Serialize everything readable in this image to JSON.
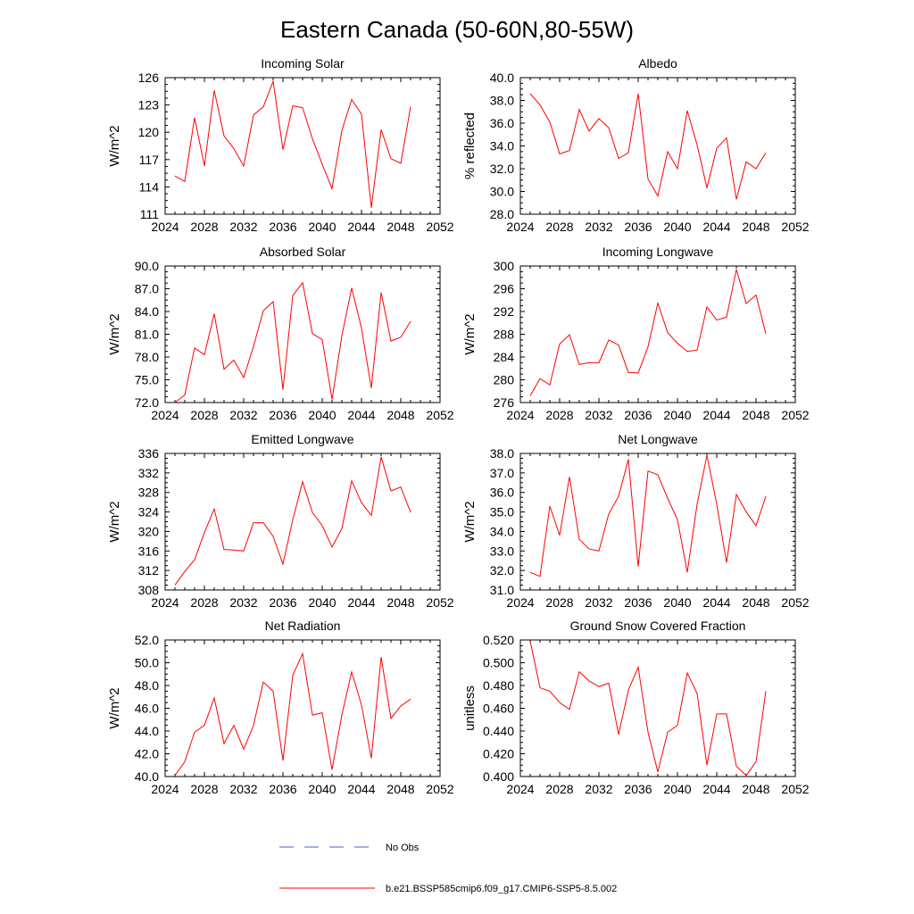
{
  "figure_title": "Eastern Canada (50-60N,80-55W)",
  "legend": {
    "obs_label": "No Obs",
    "obs_color": "#4a5fc9",
    "model_label": "b.e21.BSSP585cmip6.f09_g17.CMIP6-SSP5-8.5.002",
    "model_color": "#ff0000"
  },
  "chart_data": [
    {
      "type": "line",
      "title": "Incoming Solar",
      "ylabel": "W/m^2",
      "xlim": [
        2024,
        2052
      ],
      "x_ticks": [
        "2024",
        "2028",
        "2032",
        "2036",
        "2040",
        "2044",
        "2048",
        "2052"
      ],
      "ylim": [
        111,
        126
      ],
      "y_ticks": [
        "111",
        "114",
        "117",
        "120",
        "123",
        "126"
      ],
      "x": [
        2025,
        2026,
        2027,
        2028,
        2029,
        2030,
        2031,
        2032,
        2033,
        2034,
        2035,
        2036,
        2037,
        2038,
        2039,
        2040,
        2041,
        2042,
        2043,
        2044,
        2045,
        2046,
        2047,
        2048,
        2049
      ],
      "series": [
        {
          "values": [
            115.2,
            114.6,
            121.6,
            116.3,
            124.6,
            119.6,
            118.2,
            116.3,
            121.9,
            122.8,
            125.6,
            118.1,
            122.9,
            122.7,
            119.3,
            116.5,
            113.8,
            120.2,
            123.6,
            122.0,
            111.7,
            120.3,
            117.1,
            116.6,
            122.8
          ]
        }
      ]
    },
    {
      "type": "line",
      "title": "Albedo",
      "ylabel": "% reflected",
      "xlim": [
        2024,
        2052
      ],
      "x_ticks": [
        "2024",
        "2028",
        "2032",
        "2036",
        "2040",
        "2044",
        "2048",
        "2052"
      ],
      "ylim": [
        28,
        40
      ],
      "y_ticks": [
        "28.0",
        "30.0",
        "32.0",
        "34.0",
        "36.0",
        "38.0",
        "40.0"
      ],
      "x": [
        2025,
        2026,
        2027,
        2028,
        2029,
        2030,
        2031,
        2032,
        2033,
        2034,
        2035,
        2036,
        2037,
        2038,
        2039,
        2040,
        2041,
        2042,
        2043,
        2044,
        2045,
        2046,
        2047,
        2048,
        2049
      ],
      "series": [
        {
          "values": [
            38.6,
            37.6,
            36.1,
            33.3,
            33.6,
            37.2,
            35.3,
            36.4,
            35.6,
            32.9,
            33.4,
            38.6,
            31.1,
            29.6,
            33.5,
            32.0,
            37.1,
            34.1,
            30.3,
            33.8,
            34.7,
            29.3,
            32.6,
            32.0,
            33.4
          ]
        }
      ]
    },
    {
      "type": "line",
      "title": "Absorbed Solar",
      "ylabel": "W/m^2",
      "xlim": [
        2024,
        2052
      ],
      "x_ticks": [
        "2024",
        "2028",
        "2032",
        "2036",
        "2040",
        "2044",
        "2048",
        "2052"
      ],
      "ylim": [
        72,
        90
      ],
      "y_ticks": [
        "72.0",
        "75.0",
        "78.0",
        "81.0",
        "84.0",
        "87.0",
        "90.0"
      ],
      "x": [
        2025,
        2026,
        2027,
        2028,
        2029,
        2030,
        2031,
        2032,
        2033,
        2034,
        2035,
        2036,
        2037,
        2038,
        2039,
        2040,
        2041,
        2042,
        2043,
        2044,
        2045,
        2046,
        2047,
        2048,
        2049
      ],
      "series": [
        {
          "values": [
            72.0,
            73.0,
            79.2,
            78.3,
            83.7,
            76.4,
            77.6,
            75.3,
            79.4,
            84.1,
            85.3,
            73.7,
            86.1,
            87.8,
            81.1,
            80.3,
            72.4,
            80.8,
            87.1,
            81.8,
            73.9,
            86.5,
            80.1,
            80.6,
            82.7
          ]
        }
      ]
    },
    {
      "type": "line",
      "title": "Incoming Longwave",
      "ylabel": "W/m^2",
      "xlim": [
        2024,
        2052
      ],
      "x_ticks": [
        "2024",
        "2028",
        "2032",
        "2036",
        "2040",
        "2044",
        "2048",
        "2052"
      ],
      "ylim": [
        276,
        300
      ],
      "y_ticks": [
        "276",
        "280",
        "284",
        "288",
        "292",
        "296",
        "300"
      ],
      "x": [
        2025,
        2026,
        2027,
        2028,
        2029,
        2030,
        2031,
        2032,
        2033,
        2034,
        2035,
        2036,
        2037,
        2038,
        2039,
        2040,
        2041,
        2042,
        2043,
        2044,
        2045,
        2046,
        2047,
        2048,
        2049
      ],
      "series": [
        {
          "values": [
            277.2,
            280.2,
            279.1,
            286.3,
            287.9,
            282.7,
            283.0,
            283.0,
            287.0,
            286.1,
            281.3,
            281.2,
            285.8,
            293.5,
            288.3,
            286.4,
            285.0,
            285.2,
            292.8,
            290.5,
            291.0,
            299.4,
            293.4,
            294.9,
            288.1
          ]
        }
      ]
    },
    {
      "type": "line",
      "title": "Emitted Longwave",
      "ylabel": "W/m^2",
      "xlim": [
        2024,
        2052
      ],
      "x_ticks": [
        "2024",
        "2028",
        "2032",
        "2036",
        "2040",
        "2044",
        "2048",
        "2052"
      ],
      "ylim": [
        308,
        336
      ],
      "y_ticks": [
        "308",
        "312",
        "316",
        "320",
        "324",
        "328",
        "332",
        "336"
      ],
      "x": [
        2025,
        2026,
        2027,
        2028,
        2029,
        2030,
        2031,
        2032,
        2033,
        2034,
        2035,
        2036,
        2037,
        2038,
        2039,
        2040,
        2041,
        2042,
        2043,
        2044,
        2045,
        2046,
        2047,
        2048,
        2049
      ],
      "series": [
        {
          "values": [
            309.0,
            311.8,
            314.2,
            319.8,
            324.6,
            316.3,
            316.2,
            316.0,
            321.8,
            321.8,
            319.0,
            313.3,
            322.4,
            330.2,
            323.9,
            321.2,
            316.8,
            320.6,
            330.4,
            325.9,
            323.3,
            335.3,
            328.3,
            329.1,
            323.9
          ]
        }
      ]
    },
    {
      "type": "line",
      "title": "Net Longwave",
      "ylabel": "W/m^2",
      "xlim": [
        2024,
        2052
      ],
      "x_ticks": [
        "2024",
        "2028",
        "2032",
        "2036",
        "2040",
        "2044",
        "2048",
        "2052"
      ],
      "ylim": [
        31,
        38
      ],
      "y_ticks": [
        "31.0",
        "32.0",
        "33.0",
        "34.0",
        "35.0",
        "36.0",
        "37.0",
        "38.0"
      ],
      "x": [
        2025,
        2026,
        2027,
        2028,
        2029,
        2030,
        2031,
        2032,
        2033,
        2034,
        2035,
        2036,
        2037,
        2038,
        2039,
        2040,
        2041,
        2042,
        2043,
        2044,
        2045,
        2046,
        2047,
        2048,
        2049
      ],
      "series": [
        {
          "values": [
            31.9,
            31.7,
            35.3,
            33.8,
            36.8,
            33.6,
            33.1,
            33.0,
            34.9,
            35.8,
            37.7,
            32.2,
            37.1,
            36.9,
            35.7,
            34.6,
            31.9,
            35.4,
            37.9,
            35.4,
            32.4,
            35.9,
            35.0,
            34.3,
            35.8
          ]
        }
      ]
    },
    {
      "type": "line",
      "title": "Net Radiation",
      "ylabel": "W/m^2",
      "xlim": [
        2024,
        2052
      ],
      "x_ticks": [
        "2024",
        "2028",
        "2032",
        "2036",
        "2040",
        "2044",
        "2048",
        "2052"
      ],
      "ylim": [
        40,
        52
      ],
      "y_ticks": [
        "40.0",
        "42.0",
        "44.0",
        "46.0",
        "48.0",
        "50.0",
        "52.0"
      ],
      "x": [
        2025,
        2026,
        2027,
        2028,
        2029,
        2030,
        2031,
        2032,
        2033,
        2034,
        2035,
        2036,
        2037,
        2038,
        2039,
        2040,
        2041,
        2042,
        2043,
        2044,
        2045,
        2046,
        2047,
        2048,
        2049
      ],
      "series": [
        {
          "values": [
            40.1,
            41.3,
            43.9,
            44.5,
            46.9,
            42.9,
            44.5,
            42.4,
            44.5,
            48.3,
            47.5,
            41.4,
            48.9,
            50.8,
            45.4,
            45.6,
            40.6,
            45.4,
            49.2,
            46.3,
            41.6,
            50.5,
            45.1,
            46.2,
            46.8
          ]
        }
      ]
    },
    {
      "type": "line",
      "title": "Ground Snow Covered Fraction",
      "ylabel": "unitless",
      "xlim": [
        2024,
        2052
      ],
      "x_ticks": [
        "2024",
        "2028",
        "2032",
        "2036",
        "2040",
        "2044",
        "2048",
        "2052"
      ],
      "ylim": [
        0.4,
        0.52
      ],
      "y_ticks": [
        "0.400",
        "0.420",
        "0.440",
        "0.460",
        "0.480",
        "0.500",
        "0.520"
      ],
      "x": [
        2025,
        2026,
        2027,
        2028,
        2029,
        2030,
        2031,
        2032,
        2033,
        2034,
        2035,
        2036,
        2037,
        2038,
        2039,
        2040,
        2041,
        2042,
        2043,
        2044,
        2045,
        2046,
        2047,
        2048,
        2049
      ],
      "series": [
        {
          "values": [
            0.519,
            0.478,
            0.475,
            0.465,
            0.459,
            0.492,
            0.484,
            0.479,
            0.482,
            0.437,
            0.476,
            0.496,
            0.439,
            0.404,
            0.439,
            0.445,
            0.491,
            0.473,
            0.41,
            0.455,
            0.455,
            0.409,
            0.401,
            0.413,
            0.475
          ]
        }
      ]
    }
  ]
}
